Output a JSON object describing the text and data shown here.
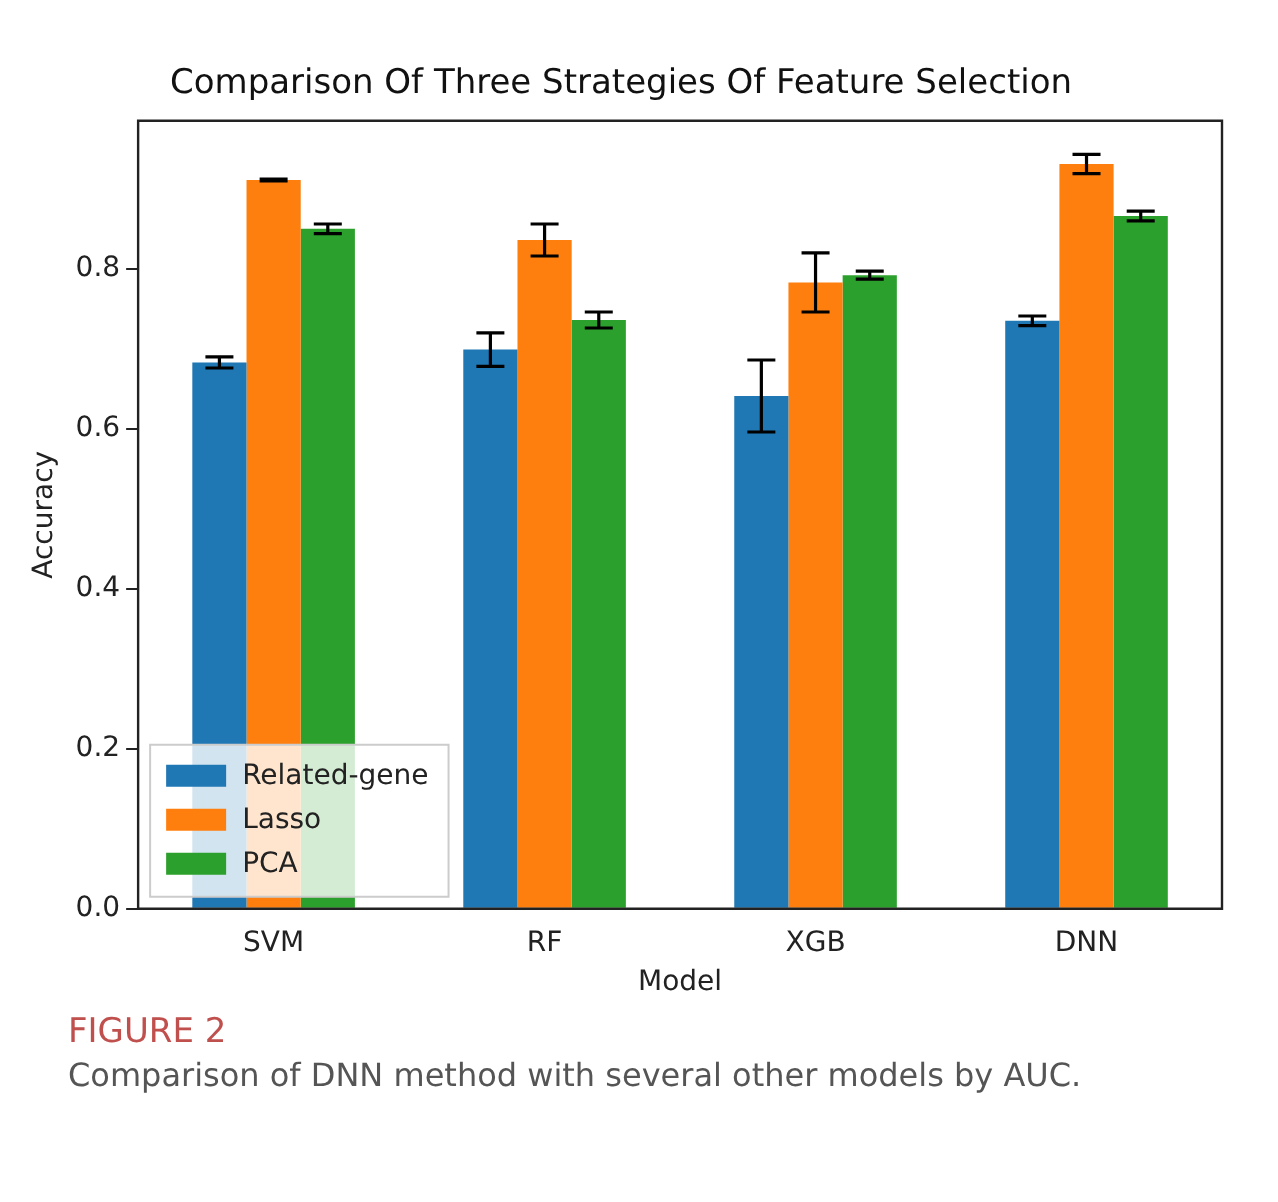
{
  "chart_data": {
    "type": "bar",
    "title": "Comparison Of Three Strategies Of Feature Selection",
    "xlabel": "Model",
    "ylabel": "Accuracy",
    "categories": [
      "SVM",
      "RF",
      "XGB",
      "DNN"
    ],
    "series": [
      {
        "name": "Related-gene",
        "color": "#1f77b4",
        "values": [
          0.683,
          0.699,
          0.641,
          0.735
        ],
        "errors": [
          0.007,
          0.021,
          0.045,
          0.006
        ]
      },
      {
        "name": "Lasso",
        "color": "#ff7f0e",
        "values": [
          0.911,
          0.836,
          0.783,
          0.931
        ],
        "errors": [
          0.001,
          0.02,
          0.037,
          0.012
        ]
      },
      {
        "name": "PCA",
        "color": "#2ca02c",
        "values": [
          0.85,
          0.736,
          0.792,
          0.866
        ],
        "errors": [
          0.006,
          0.01,
          0.005,
          0.006
        ]
      }
    ],
    "ylim": [
      0,
      0.985
    ],
    "yticks": [
      {
        "value": 0,
        "label": "0.0"
      },
      {
        "value": 0.2,
        "label": "0.2"
      },
      {
        "value": 0.4,
        "label": "0.4"
      },
      {
        "value": 0.6,
        "label": "0.6"
      },
      {
        "value": 0.8,
        "label": "0.8"
      }
    ],
    "grid": false,
    "legend": "bottom left",
    "annotations": [
      "FIGURE 2",
      "Comparison of DNN method with several other models by AUC."
    ]
  }
}
